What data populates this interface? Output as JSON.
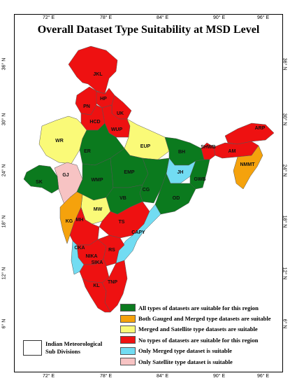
{
  "title": "Overall Dataset Type Suitability at MSD Level",
  "lon_ticks": [
    "72° E",
    "78° E",
    "84° E",
    "90° E",
    "96° E"
  ],
  "lat_ticks": [
    "36° N",
    "30° N",
    "24° N",
    "18° N",
    "12° N",
    "6° N"
  ],
  "colors": {
    "all": "#0b7a1e",
    "gauged_merged": "#f5a20c",
    "merged_satellite": "#fafa78",
    "none": "#ee1111",
    "merged_only": "#72dcf2",
    "satellite_only": "#f7c3c3"
  },
  "legend": [
    {
      "category": "all",
      "label": "All types of datasets are suitable for this region"
    },
    {
      "category": "gauged_merged",
      "label": "Both Gauged and Merged type datasets are suitable"
    },
    {
      "category": "merged_satellite",
      "label": "Merged and Satellite type datasets are suitable"
    },
    {
      "category": "none",
      "label": "No types of datasets are suitable for this region"
    },
    {
      "category": "merged_only",
      "label": "Only Merged type dataset is suitable"
    },
    {
      "category": "satellite_only",
      "label": "Only Satellite type dataset is suitable"
    }
  ],
  "subdivision_key": {
    "line1": "Indian Meteorological",
    "line2": "Sub Divisions"
  },
  "regions": [
    {
      "label": "JKL",
      "category": "none"
    },
    {
      "label": "HP",
      "category": "none"
    },
    {
      "label": "PN",
      "category": "none"
    },
    {
      "label": "UK",
      "category": "none"
    },
    {
      "label": "HCD",
      "category": "none"
    },
    {
      "label": "WUP",
      "category": "none"
    },
    {
      "label": "WR",
      "category": "merged_satellite"
    },
    {
      "label": "EUP",
      "category": "merged_satellite"
    },
    {
      "label": "ER",
      "category": "all"
    },
    {
      "label": "BH",
      "category": "all"
    },
    {
      "label": "SHWB",
      "category": "none"
    },
    {
      "label": "ARP",
      "category": "none"
    },
    {
      "label": "AM",
      "category": "none"
    },
    {
      "label": "NMMT",
      "category": "gauged_merged"
    },
    {
      "label": "GJ",
      "category": "satellite_only"
    },
    {
      "label": "SK",
      "category": "all"
    },
    {
      "label": "WMP",
      "category": "all"
    },
    {
      "label": "EMP",
      "category": "all"
    },
    {
      "label": "JH",
      "category": "merged_only"
    },
    {
      "label": "GWB",
      "category": "all"
    },
    {
      "label": "CG",
      "category": "all"
    },
    {
      "label": "OD",
      "category": "all"
    },
    {
      "label": "VB",
      "category": "all"
    },
    {
      "label": "MW",
      "category": "merged_satellite"
    },
    {
      "label": "KG",
      "category": "gauged_merged"
    },
    {
      "label": "MH",
      "category": "none"
    },
    {
      "label": "TS",
      "category": "none"
    },
    {
      "label": "CAPY",
      "category": "merged_only"
    },
    {
      "label": "NIKA",
      "category": "none"
    },
    {
      "label": "CKA",
      "category": "merged_only"
    },
    {
      "label": "RS",
      "category": "none"
    },
    {
      "label": "SIKA",
      "category": "none"
    },
    {
      "label": "TNP",
      "category": "none"
    },
    {
      "label": "KL",
      "category": "none"
    }
  ]
}
